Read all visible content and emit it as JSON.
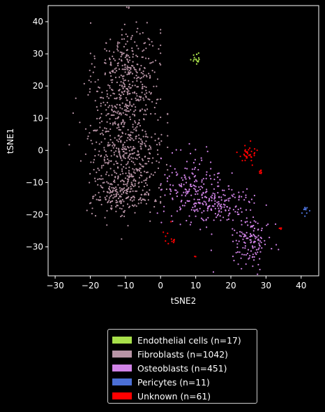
{
  "chart_data": {
    "type": "scatter",
    "title": "",
    "xlabel": "tSNE2",
    "ylabel": "tSNE1",
    "xlim": [
      -32,
      45
    ],
    "ylim": [
      -39,
      45
    ],
    "xticks": [
      -30,
      -20,
      -10,
      0,
      10,
      20,
      30,
      40
    ],
    "yticks": [
      -30,
      -20,
      -10,
      0,
      10,
      20,
      30,
      40
    ],
    "xtick_labels": [
      "−30",
      "−20",
      "−10",
      "0",
      "10",
      "20",
      "30",
      "40"
    ],
    "ytick_labels": [
      "−30",
      "−20",
      "−10",
      "0",
      "10",
      "20",
      "30",
      "40"
    ],
    "grid": false,
    "legend_position": "below",
    "series": [
      {
        "name": "Endothelial cells (n=17)",
        "color": "#a8e04a",
        "clusters": [
          {
            "n": 17,
            "cx": 10,
            "cy": 28.8,
            "sx": 0.8,
            "sy": 1.0
          }
        ]
      },
      {
        "name": "Fibroblasts (n=1042)",
        "color": "#b894a6",
        "clusters": [
          {
            "n": 330,
            "cx": -9,
            "cy": 24,
            "sx": 4.5,
            "sy": 8,
            "min_x": -24,
            "max_x": 0
          },
          {
            "n": 520,
            "cx": -10,
            "cy": 2,
            "sx": 5.5,
            "sy": 9,
            "min_x": -28,
            "max_x": 2
          },
          {
            "n": 192,
            "cx": -11,
            "cy": -14,
            "sx": 4.5,
            "sy": 3.5,
            "min_x": -25,
            "max_x": 0
          }
        ]
      },
      {
        "name": "Osteoblasts (n=451)",
        "color": "#d083e6",
        "clusters": [
          {
            "n": 170,
            "cx": 9,
            "cy": -11,
            "sx": 4,
            "sy": 5
          },
          {
            "n": 150,
            "cx": 17,
            "cy": -17,
            "sx": 5,
            "sy": 3
          },
          {
            "n": 131,
            "cx": 26,
            "cy": -28,
            "sx": 2.8,
            "sy": 3.5
          }
        ]
      },
      {
        "name": "Pericytes (n=11)",
        "color": "#4b6fd6",
        "clusters": [
          {
            "n": 11,
            "cx": 41.2,
            "cy": -19,
            "sx": 0.4,
            "sy": 0.6
          }
        ]
      },
      {
        "name": "Unknown (n=61)",
        "color": "#ff0000",
        "clusters": [
          {
            "n": 34,
            "cx": 24.5,
            "cy": -1.5,
            "sx": 1.3,
            "sy": 1.6
          },
          {
            "n": 8,
            "cx": 28.5,
            "cy": -6.5,
            "sx": 0.4,
            "sy": 0.4
          },
          {
            "n": 8,
            "cx": 3.5,
            "cy": -28.5,
            "sx": 0.8,
            "sy": 0.5
          },
          {
            "n": 5,
            "cx": 34,
            "cy": -24.5,
            "sx": 0.4,
            "sy": 0.4
          },
          {
            "n": 3,
            "cx": 1,
            "cy": -26,
            "sx": 0.4,
            "sy": 0.5
          },
          {
            "n": 2,
            "cx": 10,
            "cy": -33,
            "sx": 0.2,
            "sy": 0.2
          },
          {
            "n": 1,
            "cx": 3,
            "cy": -22,
            "sx": 0.1,
            "sy": 0.1
          }
        ]
      }
    ]
  }
}
